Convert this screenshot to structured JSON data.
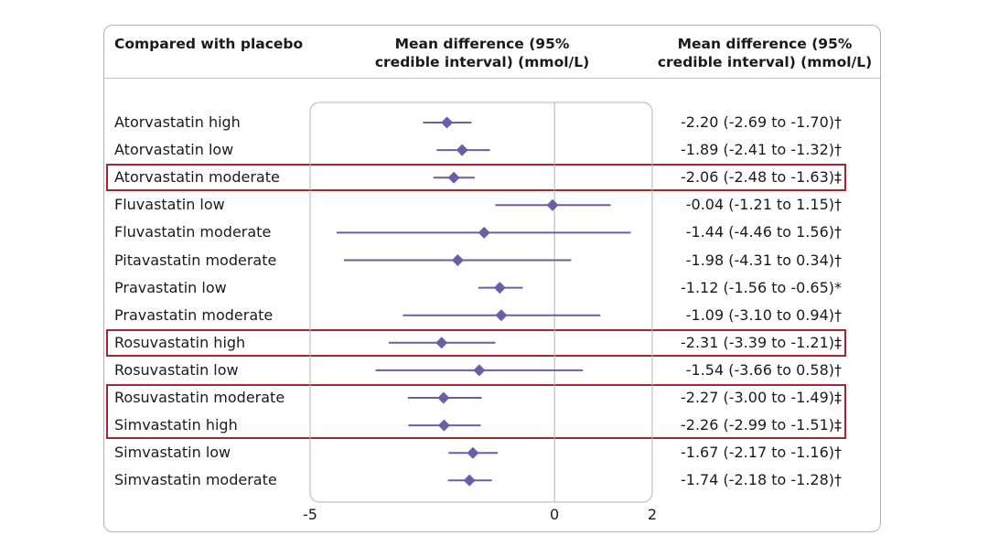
{
  "header": {
    "left": "Compared with placebo",
    "mid_line1": "Mean difference (95%",
    "mid_line2": "credible interval) (mmol/L)",
    "right_line1": "Mean difference (95%",
    "right_line2": "credible interval) (mmol/L)"
  },
  "chart_data": {
    "type": "forest",
    "xlim": [
      -5,
      2
    ],
    "xticks": [
      "-5",
      "0",
      "2"
    ],
    "reference_line": 0,
    "marker_color": "#6a5ea6",
    "highlight_color": "#a3282b",
    "rows": [
      {
        "label": "Atorvastatin high",
        "mean": -2.2,
        "low": -2.69,
        "high": -1.7,
        "text": "-2.20 (-2.69 to -1.70)†",
        "highlight": false
      },
      {
        "label": "Atorvastatin low",
        "mean": -1.89,
        "low": -2.41,
        "high": -1.32,
        "text": "-1.89 (-2.41 to -1.32)†",
        "highlight": false
      },
      {
        "label": "Atorvastatin moderate",
        "mean": -2.06,
        "low": -2.48,
        "high": -1.63,
        "text": "-2.06 (-2.48 to -1.63)‡",
        "highlight": true
      },
      {
        "label": "Fluvastatin low",
        "mean": -0.04,
        "low": -1.21,
        "high": 1.15,
        "text": "-0.04 (-1.21 to 1.15)†",
        "highlight": false
      },
      {
        "label": "Fluvastatin moderate",
        "mean": -1.44,
        "low": -4.46,
        "high": 1.56,
        "text": "-1.44 (-4.46 to 1.56)†",
        "highlight": false
      },
      {
        "label": "Pitavastatin moderate",
        "mean": -1.98,
        "low": -4.31,
        "high": 0.34,
        "text": "-1.98 (-4.31 to 0.34)†",
        "highlight": false
      },
      {
        "label": "Pravastatin low",
        "mean": -1.12,
        "low": -1.56,
        "high": -0.65,
        "text": "-1.12 (-1.56 to -0.65)*",
        "highlight": false
      },
      {
        "label": "Pravastatin moderate",
        "mean": -1.09,
        "low": -3.1,
        "high": 0.94,
        "text": "-1.09 (-3.10 to 0.94)†",
        "highlight": false
      },
      {
        "label": "Rosuvastatin high",
        "mean": -2.31,
        "low": -3.39,
        "high": -1.21,
        "text": "-2.31 (-3.39 to -1.21)‡",
        "highlight": true
      },
      {
        "label": "Rosuvastatin low",
        "mean": -1.54,
        "low": -3.66,
        "high": 0.58,
        "text": "-1.54 (-3.66 to 0.58)†",
        "highlight": false
      },
      {
        "label": "Rosuvastatin moderate",
        "mean": -2.27,
        "low": -3.0,
        "high": -1.49,
        "text": "-2.27 (-3.00 to -1.49)‡",
        "highlight": true
      },
      {
        "label": "Simvastatin high",
        "mean": -2.26,
        "low": -2.99,
        "high": -1.51,
        "text": "-2.26 (-2.99 to -1.51)‡",
        "highlight": true
      },
      {
        "label": "Simvastatin low",
        "mean": -1.67,
        "low": -2.17,
        "high": -1.16,
        "text": "-1.67 (-2.17 to -1.16)†",
        "highlight": false
      },
      {
        "label": "Simvastatin moderate",
        "mean": -1.74,
        "low": -2.18,
        "high": -1.28,
        "text": "-1.74 (-2.18 to -1.28)†",
        "highlight": false
      }
    ]
  }
}
